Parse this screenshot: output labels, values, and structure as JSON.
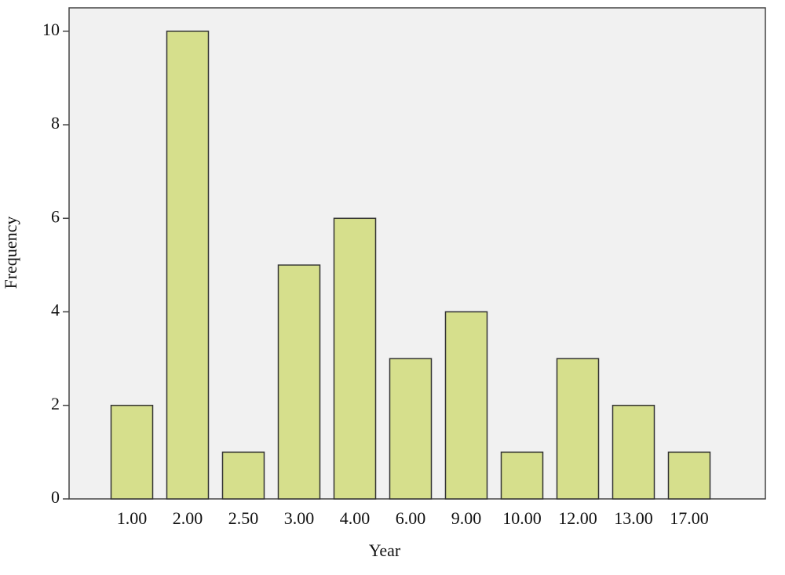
{
  "chart_data": {
    "type": "bar",
    "x_label": "Year",
    "y_label": "Frequency",
    "categories": [
      "1.00",
      "2.00",
      "2.50",
      "3.00",
      "4.00",
      "6.00",
      "9.00",
      "10.00",
      "12.00",
      "13.00",
      "17.00"
    ],
    "values": [
      2,
      10,
      1,
      5,
      6,
      3,
      4,
      1,
      3,
      2,
      1
    ],
    "color": "#d6df8c",
    "ylim": [
      0,
      10.5
    ],
    "yticks": [
      0,
      2,
      4,
      6,
      8,
      10
    ]
  }
}
